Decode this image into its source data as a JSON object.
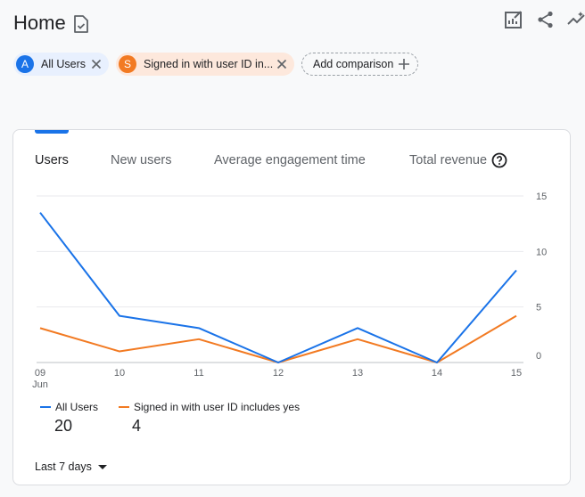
{
  "header": {
    "title": "Home"
  },
  "comparisons": [
    {
      "badge": "A",
      "label": "All Users",
      "color": "#1a73e8",
      "bg": "#e8f0fe"
    },
    {
      "badge": "S",
      "label": "Signed in with user ID in...",
      "color": "#f27a22",
      "bg": "#fde8dc"
    }
  ],
  "add_comparison_label": "Add comparison",
  "tabs": [
    "Users",
    "New users",
    "Average engagement time",
    "Total revenue"
  ],
  "chart_data": {
    "type": "line",
    "x": [
      "09",
      "10",
      "11",
      "12",
      "13",
      "14",
      "15"
    ],
    "x_sublabel": "Jun",
    "y_ticks": [
      "15",
      "10",
      "5",
      "0"
    ],
    "ylim": [
      0,
      15
    ],
    "grid": true,
    "series": [
      {
        "name": "All Users",
        "color": "#1a73e8",
        "values": [
          13.5,
          4.2,
          3.1,
          0,
          3.1,
          0,
          8.3
        ]
      },
      {
        "name": "Signed in with user ID includes yes",
        "color": "#f27a22",
        "values": [
          3.1,
          1.0,
          2.1,
          0,
          2.1,
          0,
          4.2
        ]
      }
    ]
  },
  "legend": [
    {
      "label": "All Users",
      "value": "20",
      "color": "#1a73e8"
    },
    {
      "label": "Signed in with user ID includes yes",
      "value": "4",
      "color": "#f27a22"
    }
  ],
  "date_range_label": "Last 7 days"
}
